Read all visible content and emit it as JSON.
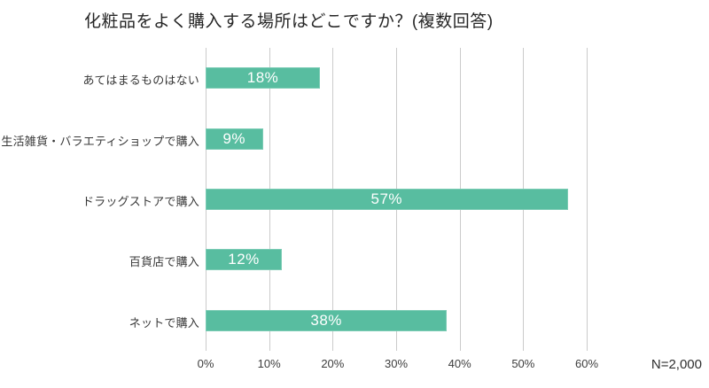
{
  "chart_data": {
    "type": "bar",
    "orientation": "horizontal",
    "title": "化粧品をよく購入する場所はどこですか？(複数回答)",
    "categories": [
      "あてはまるものはない",
      "生活雑貨・バラエティショップで購入",
      "ドラッグストアで購入",
      "百貨店で購入",
      "ネットで購入"
    ],
    "values": [
      18,
      9,
      57,
      12,
      38
    ],
    "value_labels": [
      "18%",
      "9%",
      "57%",
      "12%",
      "38%"
    ],
    "x_ticks": [
      0,
      10,
      20,
      30,
      40,
      50,
      60
    ],
    "x_tick_labels": [
      "0%",
      "10%",
      "20%",
      "30%",
      "40%",
      "50%",
      "60%"
    ],
    "xlim": [
      0,
      60
    ],
    "grid": true,
    "legend": false,
    "note": "N=2,000",
    "colors": {
      "bar_fill": "#58bda0",
      "bar_border": "#7bcbb4",
      "gridline": "#cbcbcb",
      "title_text": "#262626",
      "label_text": "#383838",
      "value_text": "#ffffff",
      "background": "#ffffff"
    }
  }
}
